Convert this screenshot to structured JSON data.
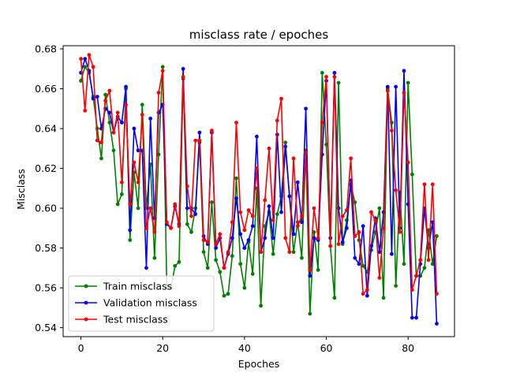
{
  "chart_data": {
    "type": "line",
    "title": "misclass rate / epoches",
    "xlabel": "Epoches",
    "ylabel": "Misclass",
    "xlim": [
      -4.35,
      91.35
    ],
    "ylim": [
      0.5355,
      0.6816
    ],
    "xticks": [
      0,
      20,
      40,
      60,
      80
    ],
    "xtick_labels": [
      "0",
      "20",
      "40",
      "60",
      "80"
    ],
    "yticks": [
      0.54,
      0.56,
      0.58,
      0.6,
      0.62,
      0.64,
      0.66,
      0.68
    ],
    "ytick_labels": [
      "0.54",
      "0.56",
      "0.58",
      "0.60",
      "0.62",
      "0.64",
      "0.66",
      "0.68"
    ],
    "grid": false,
    "legend_position": "lower-left",
    "x": [
      0,
      1,
      2,
      3,
      4,
      5,
      6,
      7,
      8,
      9,
      10,
      11,
      12,
      13,
      14,
      15,
      16,
      17,
      18,
      19,
      20,
      21,
      22,
      23,
      24,
      25,
      26,
      27,
      28,
      29,
      30,
      31,
      32,
      33,
      34,
      35,
      36,
      37,
      38,
      39,
      40,
      41,
      42,
      43,
      44,
      45,
      46,
      47,
      48,
      49,
      50,
      51,
      52,
      53,
      54,
      55,
      56,
      57,
      58,
      59,
      60,
      61,
      62,
      63,
      64,
      65,
      66,
      67,
      68,
      69,
      70,
      71,
      72,
      73,
      74,
      75,
      76,
      77,
      78,
      79,
      80,
      81,
      82,
      83,
      84,
      85,
      86,
      87
    ],
    "series": [
      {
        "name": "Train misclass",
        "color": "#008000",
        "values": [
          0.664,
          0.671,
          0.668,
          0.656,
          0.64,
          0.625,
          0.657,
          0.643,
          0.629,
          0.602,
          0.607,
          0.66,
          0.584,
          0.618,
          0.6,
          0.652,
          0.6,
          0.622,
          0.575,
          0.627,
          0.671,
          0.56,
          0.56,
          0.571,
          0.573,
          0.665,
          0.592,
          0.588,
          0.6,
          0.633,
          0.578,
          0.57,
          0.603,
          0.574,
          0.568,
          0.556,
          0.557,
          0.576,
          0.615,
          0.572,
          0.56,
          0.583,
          0.567,
          0.61,
          0.551,
          0.591,
          0.598,
          0.577,
          0.597,
          0.606,
          0.633,
          0.606,
          0.578,
          0.593,
          0.575,
          0.629,
          0.547,
          0.588,
          0.569,
          0.668,
          0.632,
          0.581,
          0.555,
          0.663,
          0.582,
          0.594,
          0.612,
          0.603,
          0.584,
          0.571,
          0.568,
          0.579,
          0.588,
          0.6,
          0.555,
          0.66,
          0.643,
          0.561,
          0.608,
          0.572,
          0.663,
          0.617,
          0.566,
          0.566,
          0.57,
          0.589,
          0.572,
          0.586
        ]
      },
      {
        "name": "Validation misclass",
        "color": "#0000ff",
        "values": [
          0.668,
          0.675,
          0.669,
          0.655,
          0.656,
          0.64,
          0.65,
          0.648,
          0.638,
          0.646,
          0.643,
          0.661,
          0.589,
          0.64,
          0.629,
          0.629,
          0.57,
          0.645,
          0.595,
          0.648,
          0.652,
          0.592,
          0.59,
          0.601,
          0.592,
          0.67,
          0.6,
          0.6,
          0.597,
          0.638,
          0.586,
          0.582,
          0.638,
          0.58,
          0.585,
          0.57,
          0.577,
          0.585,
          0.605,
          0.587,
          0.58,
          0.584,
          0.591,
          0.636,
          0.578,
          0.585,
          0.601,
          0.585,
          0.637,
          0.598,
          0.631,
          0.606,
          0.587,
          0.613,
          0.593,
          0.65,
          0.566,
          0.585,
          0.584,
          0.627,
          0.664,
          0.585,
          0.668,
          0.6,
          0.583,
          0.59,
          0.614,
          0.575,
          0.572,
          0.591,
          0.556,
          0.581,
          0.595,
          0.578,
          0.598,
          0.661,
          0.577,
          0.661,
          0.59,
          0.669,
          0.602,
          0.545,
          0.545,
          0.572,
          0.6,
          0.58,
          0.593,
          0.542
        ]
      },
      {
        "name": "Test misclass",
        "color": "#ff0000",
        "values": [
          0.675,
          0.649,
          0.677,
          0.671,
          0.634,
          0.633,
          0.654,
          0.659,
          0.638,
          0.648,
          0.613,
          0.652,
          0.602,
          0.623,
          0.613,
          0.647,
          0.59,
          0.6,
          0.588,
          0.658,
          0.669,
          0.593,
          0.59,
          0.602,
          0.591,
          0.666,
          0.611,
          0.596,
          0.634,
          0.634,
          0.584,
          0.583,
          0.639,
          0.582,
          0.587,
          0.57,
          0.578,
          0.593,
          0.643,
          0.598,
          0.589,
          0.599,
          0.596,
          0.62,
          0.578,
          0.604,
          0.63,
          0.594,
          0.644,
          0.655,
          0.585,
          0.578,
          0.625,
          0.591,
          0.596,
          0.628,
          0.569,
          0.6,
          0.585,
          0.643,
          0.666,
          0.581,
          0.666,
          0.582,
          0.596,
          0.599,
          0.625,
          0.586,
          0.588,
          0.557,
          0.559,
          0.598,
          0.594,
          0.565,
          0.59,
          0.659,
          0.639,
          0.609,
          0.588,
          0.658,
          0.623,
          0.559,
          0.566,
          0.574,
          0.612,
          0.574,
          0.612,
          0.557
        ]
      }
    ]
  }
}
